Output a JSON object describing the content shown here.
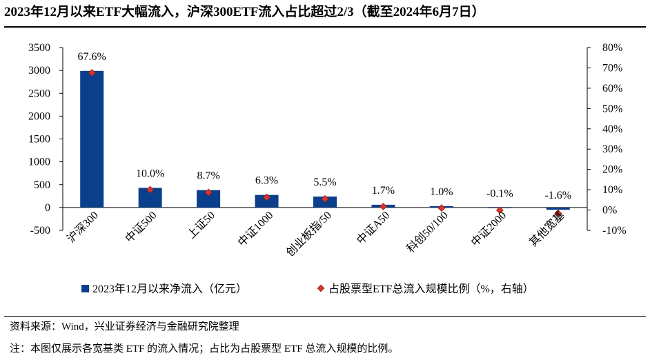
{
  "title": "2023年12月以来ETF大幅流入，沪深300ETF流入占比超过2/3（截至2024年6月7日）",
  "source": "资料来源：Wind，兴业证券经济与金融研究院整理",
  "note": "注：本图仅展示各宽基类 ETF 的流入情况；占比为占股票型 ETF 总流入规模的比例。",
  "colors": {
    "bar": "#0a3f8c",
    "marker": "#d9352b",
    "marker_edge": "#8b1a14"
  },
  "chart_data": {
    "type": "bar",
    "categories": [
      "沪深300",
      "中证500",
      "上证50",
      "中证1000",
      "创业板指/50",
      "中证A50",
      "科创50/100",
      "中证2000",
      "其他宽基"
    ],
    "series": [
      {
        "name": "2023年12月以来净流入（亿元）",
        "type": "bar",
        "axis": "left",
        "values": [
          2990,
          430,
          380,
          275,
          240,
          60,
          30,
          -10,
          -50
        ]
      },
      {
        "name": "占股票型ETF总流入规模比例（%，右轴）",
        "type": "scatter",
        "axis": "right",
        "values": [
          67.6,
          10.0,
          8.7,
          6.3,
          5.5,
          1.7,
          1.0,
          -0.1,
          -1.6
        ],
        "labels": [
          "67.6%",
          "10.0%",
          "8.7%",
          "6.3%",
          "5.5%",
          "1.7%",
          "1.0%",
          "-0.1%",
          "-1.6%"
        ]
      }
    ],
    "y_left": {
      "range": [
        -500,
        3500
      ],
      "ticks": [
        "-500",
        "0",
        "500",
        "1000",
        "1500",
        "2000",
        "2500",
        "3000",
        "3500"
      ]
    },
    "y_right": {
      "range": [
        -10,
        80
      ],
      "ticks": [
        "-10%",
        "0%",
        "10%",
        "20%",
        "30%",
        "40%",
        "50%",
        "60%",
        "70%",
        "80%"
      ]
    },
    "legend": [
      "2023年12月以来净流入（亿元）",
      "占股票型ETF总流入规模比例（%，右轴）"
    ],
    "legend_position": "bottom",
    "grid": false
  }
}
